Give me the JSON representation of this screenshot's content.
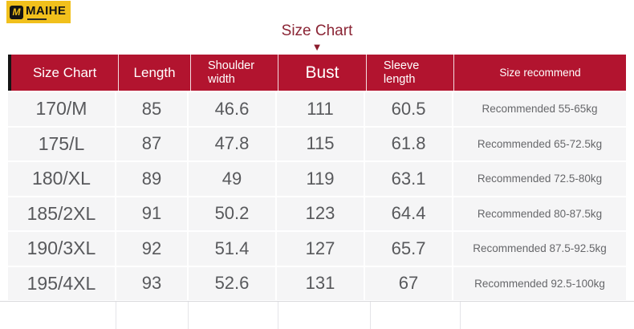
{
  "logo": {
    "badge": "M",
    "name": "MAIHE"
  },
  "title": {
    "text": "Size Chart"
  },
  "icons": {
    "arrow_down": "▼"
  },
  "colors": {
    "header_bg": "#b2142f",
    "title_text": "#8a2434",
    "row_bg": "#f5f5f6",
    "cell_text": "#58595c",
    "logo_bg": "#f1c01c"
  },
  "chart_data": {
    "type": "table",
    "title": "Size Chart",
    "columns": [
      "Size Chart",
      "Length",
      "Shoulder width",
      "Bust",
      "Sleeve length",
      "Size recommend"
    ],
    "rows": [
      [
        "170/M",
        "85",
        "46.6",
        "111",
        "60.5",
        "Recommended 55-65kg"
      ],
      [
        "175/L",
        "87",
        "47.8",
        "115",
        "61.8",
        "Recommended 65-72.5kg"
      ],
      [
        "180/XL",
        "89",
        "49",
        "119",
        "63.1",
        "Recommended 72.5-80kg"
      ],
      [
        "185/2XL",
        "91",
        "50.2",
        "123",
        "64.4",
        "Recommended 80-87.5kg"
      ],
      [
        "190/3XL",
        "92",
        "51.4",
        "127",
        "65.7",
        "Recommended 87.5-92.5kg"
      ],
      [
        "195/4XL",
        "93",
        "52.6",
        "131",
        "67",
        "Recommended 92.5-100kg"
      ]
    ]
  }
}
